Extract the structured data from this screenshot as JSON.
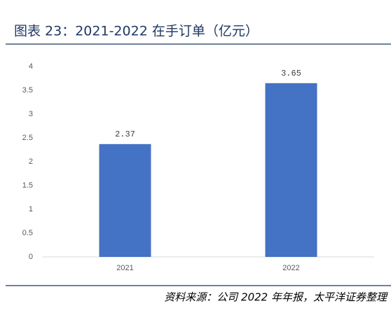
{
  "chart_data": {
    "type": "bar",
    "title": "图表 23：2021-2022 在手订单（亿元）",
    "categories": [
      "2021",
      "2022"
    ],
    "values": [
      2.37,
      3.65
    ],
    "color": "#4472c4",
    "ylim": [
      0,
      4
    ],
    "yticks": [
      0,
      0.5,
      1,
      1.5,
      2,
      2.5,
      3,
      3.5,
      4
    ],
    "grid": false,
    "source": "资料来源：公司 2022 年年报，太平洋证券整理"
  }
}
